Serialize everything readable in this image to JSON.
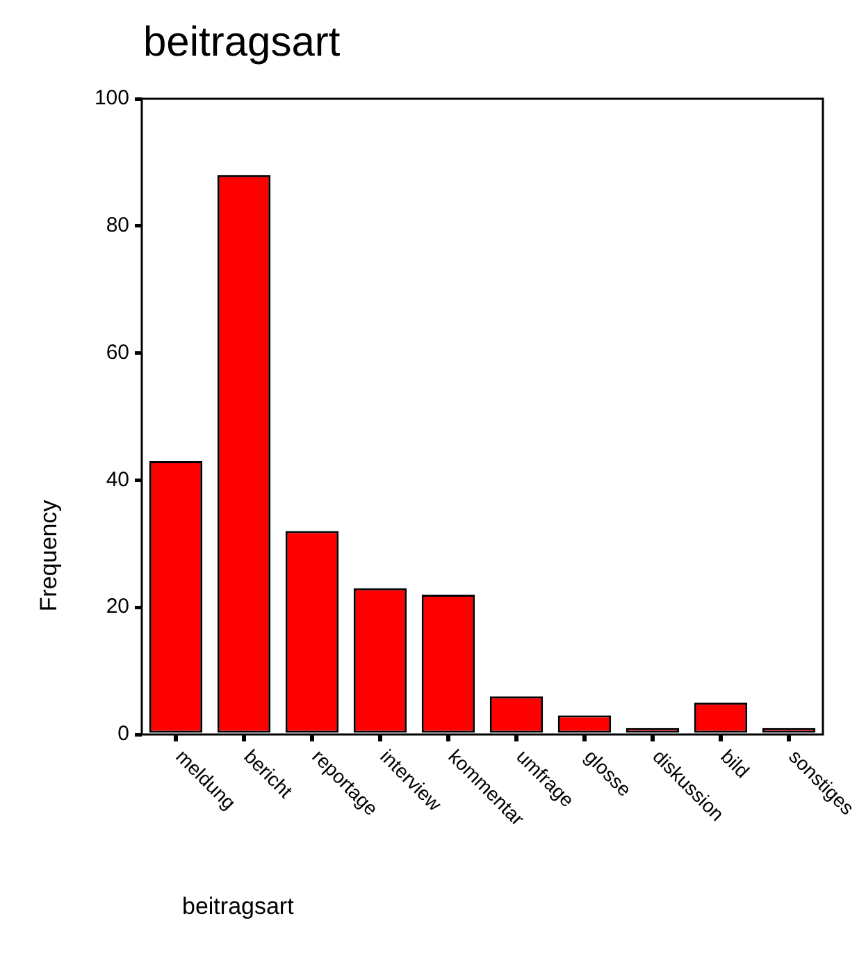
{
  "chart_data": {
    "type": "bar",
    "title": "beitragsart",
    "xlabel": "beitragsart",
    "ylabel": "Frequency",
    "categories": [
      "meldung",
      "bericht",
      "reportage",
      "interview",
      "kommentar",
      "umfrage",
      "glosse",
      "diskussion",
      "bild",
      "sonstiges"
    ],
    "values": [
      43,
      88,
      32,
      23,
      22,
      6,
      3,
      1,
      5,
      1
    ],
    "color": "#ff0000",
    "ylim": [
      0,
      100
    ],
    "yticks": [
      0,
      20,
      40,
      60,
      80,
      100
    ],
    "grid": false,
    "legend": false
  }
}
